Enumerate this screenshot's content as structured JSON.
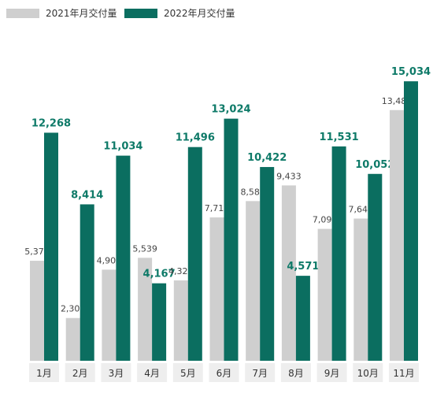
{
  "colors": {
    "series_2021": "#cfcfcf",
    "series_2022": "#0b6e60",
    "label_2022": "#0e7a68",
    "cat_box": "#eeeeee"
  },
  "chart_data": {
    "type": "bar",
    "title": "",
    "xlabel": "",
    "ylabel": "",
    "ylim": [
      0,
      17500
    ],
    "grid": false,
    "legend": "top-left",
    "categories": [
      "1月",
      "2月",
      "3月",
      "4月",
      "5月",
      "6月",
      "7月",
      "8月",
      "9月",
      "10月",
      "11月"
    ],
    "series": [
      {
        "name": "2021年月交付量",
        "values": [
          5379,
          2300,
          4900,
          5539,
          4323,
          7713,
          8589,
          9433,
          7094,
          7649,
          13485
        ],
        "labels": [
          "5,379",
          "2,300",
          "4,900",
          "5,539",
          "4,323",
          "7,713",
          "8,589",
          "9,433",
          "7,094",
          "7,649",
          "13,485"
        ]
      },
      {
        "name": "2022年月交付量",
        "values": [
          12268,
          8414,
          11034,
          4167,
          11496,
          13024,
          10422,
          4571,
          11531,
          10052,
          15034
        ],
        "labels": [
          "12,268",
          "8,414",
          "11,034",
          "4,167",
          "11,496",
          "13,024",
          "10,422",
          "4,571",
          "11,531",
          "10,052",
          "15,034"
        ]
      }
    ]
  }
}
